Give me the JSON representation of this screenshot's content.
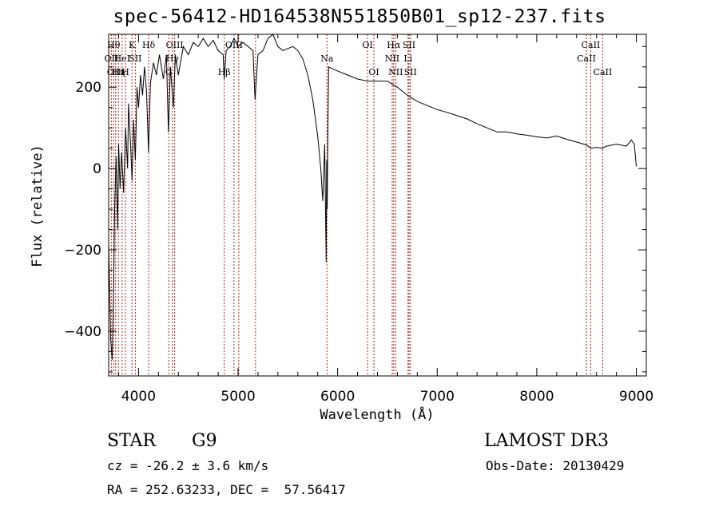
{
  "title": "spec-56412-HD164538N551850B01_sp12-237.fits",
  "info": {
    "object_type": "STAR",
    "subclass": "G9",
    "survey": "LAMOST DR3",
    "redshift": "cz = -26.2 ± 3.6 km/s",
    "obs_date": "Obs-Date: 20130429",
    "coords": "RA = 252.63233, DEC =  57.56417"
  },
  "chart_data": {
    "type": "line",
    "title": "spec-56412-HD164538N551850B01_sp12-237.fits",
    "xlabel": "Wavelength (Å)",
    "ylabel": "Flux (relative)",
    "xlim": [
      3700,
      9100
    ],
    "ylim": [
      -510,
      330
    ],
    "xticks": [
      4000,
      5000,
      6000,
      7000,
      8000,
      9000
    ],
    "yticks": [
      -400,
      -200,
      0,
      200
    ],
    "series": [
      {
        "name": "flux",
        "points": [
          [
            3700,
            -180
          ],
          [
            3720,
            -420
          ],
          [
            3735,
            -470
          ],
          [
            3750,
            -300
          ],
          [
            3760,
            -100
          ],
          [
            3775,
            30
          ],
          [
            3790,
            -150
          ],
          [
            3800,
            60
          ],
          [
            3815,
            -50
          ],
          [
            3830,
            40
          ],
          [
            3850,
            -60
          ],
          [
            3870,
            100
          ],
          [
            3890,
            0
          ],
          [
            3900,
            160
          ],
          [
            3920,
            60
          ],
          [
            3935,
            -30
          ],
          [
            3950,
            120
          ],
          [
            3968,
            20
          ],
          [
            3985,
            200
          ],
          [
            4000,
            150
          ],
          [
            4020,
            230
          ],
          [
            4040,
            180
          ],
          [
            4060,
            250
          ],
          [
            4080,
            190
          ],
          [
            4100,
            40
          ],
          [
            4120,
            210
          ],
          [
            4150,
            260
          ],
          [
            4180,
            230
          ],
          [
            4210,
            280
          ],
          [
            4250,
            220
          ],
          [
            4280,
            280
          ],
          [
            4300,
            90
          ],
          [
            4320,
            250
          ],
          [
            4350,
            150
          ],
          [
            4370,
            280
          ],
          [
            4400,
            230
          ],
          [
            4450,
            300
          ],
          [
            4500,
            280
          ],
          [
            4550,
            310
          ],
          [
            4600,
            300
          ],
          [
            4650,
            320
          ],
          [
            4700,
            300
          ],
          [
            4750,
            315
          ],
          [
            4800,
            290
          ],
          [
            4850,
            280
          ],
          [
            4861,
            220
          ],
          [
            4880,
            290
          ],
          [
            4920,
            300
          ],
          [
            4960,
            320
          ],
          [
            5000,
            300
          ],
          [
            5050,
            310
          ],
          [
            5100,
            300
          ],
          [
            5150,
            290
          ],
          [
            5170,
            170
          ],
          [
            5200,
            280
          ],
          [
            5250,
            290
          ],
          [
            5300,
            320
          ],
          [
            5350,
            330
          ],
          [
            5400,
            300
          ],
          [
            5450,
            290
          ],
          [
            5500,
            295
          ],
          [
            5550,
            300
          ],
          [
            5600,
            290
          ],
          [
            5650,
            270
          ],
          [
            5700,
            230
          ],
          [
            5750,
            170
          ],
          [
            5800,
            80
          ],
          [
            5830,
            0
          ],
          [
            5850,
            -80
          ],
          [
            5870,
            60
          ],
          [
            5880,
            -140
          ],
          [
            5885,
            -230
          ],
          [
            5890,
            20
          ],
          [
            5895,
            -100
          ],
          [
            5900,
            60
          ],
          [
            5910,
            250
          ],
          [
            5950,
            245
          ],
          [
            6000,
            240
          ],
          [
            6100,
            230
          ],
          [
            6200,
            220
          ],
          [
            6300,
            215
          ],
          [
            6400,
            215
          ],
          [
            6500,
            215
          ],
          [
            6563,
            205
          ],
          [
            6600,
            200
          ],
          [
            6700,
            180
          ],
          [
            6800,
            165
          ],
          [
            6900,
            155
          ],
          [
            7000,
            145
          ],
          [
            7100,
            138
          ],
          [
            7200,
            130
          ],
          [
            7300,
            122
          ],
          [
            7400,
            110
          ],
          [
            7500,
            100
          ],
          [
            7600,
            90
          ],
          [
            7700,
            90
          ],
          [
            7800,
            85
          ],
          [
            7900,
            82
          ],
          [
            8000,
            78
          ],
          [
            8100,
            75
          ],
          [
            8200,
            80
          ],
          [
            8300,
            72
          ],
          [
            8400,
            65
          ],
          [
            8500,
            58
          ],
          [
            8542,
            50
          ],
          [
            8600,
            52
          ],
          [
            8662,
            50
          ],
          [
            8700,
            55
          ],
          [
            8800,
            60
          ],
          [
            8900,
            55
          ],
          [
            8950,
            70
          ],
          [
            8980,
            60
          ],
          [
            9000,
            5
          ]
        ]
      }
    ],
    "lines": [
      {
        "wave": 3727,
        "label": "OII",
        "row": 1
      },
      {
        "wave": 3750,
        "label": "Hθ",
        "row": 0
      },
      {
        "wave": 3770,
        "label": "OIII",
        "row": 2
      },
      {
        "wave": 3798,
        "label": "Hη",
        "row": 2
      },
      {
        "wave": 3835,
        "label": "HeI",
        "row": 1
      },
      {
        "wave": 3869,
        "label": "H",
        "row": 2
      },
      {
        "wave": 3934,
        "label": "K",
        "row": 0
      },
      {
        "wave": 3968,
        "label": "SII",
        "row": 1
      },
      {
        "wave": 4102,
        "label": "Hδ",
        "row": 0
      },
      {
        "wave": 4304,
        "label": "G",
        "row": 2
      },
      {
        "wave": 4341,
        "label": "Hγ",
        "row": 1
      },
      {
        "wave": 4363,
        "label": "OIII",
        "row": 0
      },
      {
        "wave": 4861,
        "label": "Hβ",
        "row": 2
      },
      {
        "wave": 4959,
        "label": "OIII",
        "row": 0
      },
      {
        "wave": 5007,
        "label": "",
        "row": 0
      },
      {
        "wave": 5175,
        "label": "",
        "row": 0
      },
      {
        "wave": 5893,
        "label": "Na",
        "row": 1
      },
      {
        "wave": 6300,
        "label": "OI",
        "row": 0
      },
      {
        "wave": 6364,
        "label": "OI",
        "row": 2
      },
      {
        "wave": 6548,
        "label": "NII",
        "row": 1
      },
      {
        "wave": 6563,
        "label": "Hα",
        "row": 0
      },
      {
        "wave": 6583,
        "label": "NII",
        "row": 2
      },
      {
        "wave": 6707,
        "label": "Li",
        "row": 1
      },
      {
        "wave": 6717,
        "label": "SII",
        "row": 0
      },
      {
        "wave": 6731,
        "label": "SII",
        "row": 2
      },
      {
        "wave": 8498,
        "label": "CaII",
        "row": 1
      },
      {
        "wave": 8542,
        "label": "CaII",
        "row": 0
      },
      {
        "wave": 8662,
        "label": "CaII",
        "row": 2
      }
    ]
  }
}
